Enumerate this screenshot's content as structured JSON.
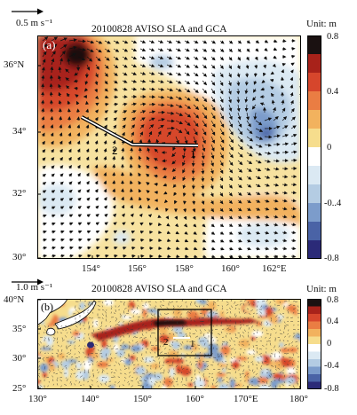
{
  "panel_a": {
    "scale_label": "0.5 m s⁻¹",
    "title": "20100828 AVISO SLA and GCA",
    "unit": "Unit: m",
    "panel_label": "(a)",
    "lat_ticks": [
      "36°N",
      "34°",
      "32°",
      "30°"
    ],
    "lon_ticks": [
      "154°",
      "156°",
      "158°",
      "160°",
      "162°E"
    ],
    "colorbar_ticks": [
      "0.8",
      "0.4",
      "0",
      "-0..4",
      "-0.8"
    ],
    "section_labels": [
      "1",
      "2"
    ]
  },
  "panel_b": {
    "scale_label": "1.0 m s⁻¹",
    "title": "20100828 AVISO SLA and GCA",
    "unit": "Unit: m",
    "panel_label": "(b)",
    "lat_ticks": [
      "40°N",
      "35°",
      "30°",
      "25°"
    ],
    "lon_ticks": [
      "130°",
      "140°",
      "150°",
      "160°",
      "170°E",
      "180°"
    ],
    "colorbar_ticks": [
      "0.8",
      "0.4",
      "0",
      "-0.4",
      "-0.8"
    ],
    "section_labels": [
      "2",
      "1"
    ]
  },
  "colors": {
    "sla_scale": [
      "#2b2a78",
      "#4a63a6",
      "#7c9ccb",
      "#b4cce3",
      "#dbe9f3",
      "#ffffff",
      "#f6dd8d",
      "#f2b25e",
      "#ea7d43",
      "#d6462c",
      "#a8221a",
      "#1a1111"
    ]
  }
}
